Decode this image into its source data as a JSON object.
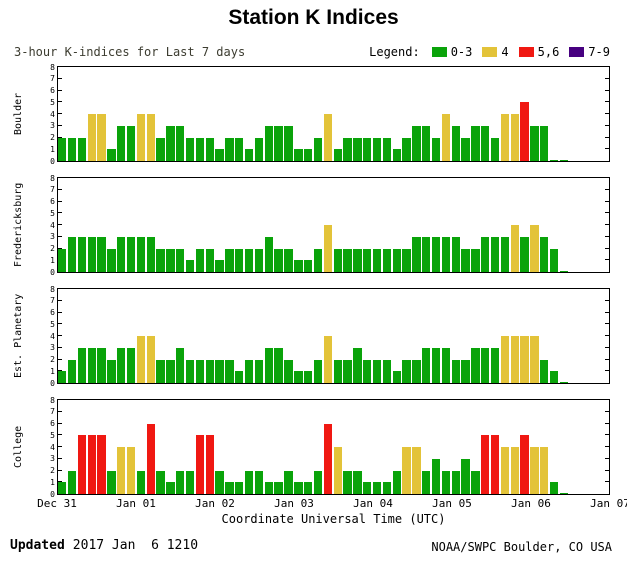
{
  "title": "Station K Indices",
  "header": {
    "subtitle": "3-hour K-indices for Last 7 days",
    "legend_label": "Legend:"
  },
  "footer": {
    "updated_label": "Updated",
    "updated_value": "2017 Jan  6 1210",
    "credit": "NOAA/SWPC Boulder, CO USA"
  },
  "chart_data": {
    "type": "bar",
    "title": "Station K Indices",
    "subtitle": "3-hour K-indices for Last 7 days",
    "xlabel": "Coordinate Universal Time (UTC)",
    "x_tick_labels": [
      "Dec 31",
      "Jan 01",
      "Jan 02",
      "Jan 03",
      "Jan 04",
      "Jan 05",
      "Jan 06",
      "Jan 07"
    ],
    "days": 7,
    "bars_per_day": 8,
    "ylim": [
      0,
      8
    ],
    "y_ticks": [
      0,
      1,
      2,
      3,
      4,
      5,
      6,
      7,
      8
    ],
    "grid": false,
    "legend_position": "top-right",
    "legend": [
      {
        "label": "0-3",
        "color": "#0aa30a"
      },
      {
        "label": "4",
        "color": "#e3c339"
      },
      {
        "label": "5,6",
        "color": "#f01812"
      },
      {
        "label": "7-9",
        "color": "#470080"
      }
    ],
    "panels": [
      {
        "station": "Boulder",
        "values": [
          2,
          2,
          2,
          4,
          4,
          1,
          3,
          3,
          4,
          4,
          2,
          3,
          3,
          2,
          2,
          2,
          1,
          2,
          2,
          1,
          2,
          3,
          3,
          3,
          1,
          1,
          2,
          4,
          1,
          2,
          2,
          2,
          2,
          2,
          1,
          2,
          3,
          3,
          2,
          4,
          3,
          2,
          3,
          3,
          2,
          4,
          4,
          5,
          3,
          3,
          0,
          0
        ]
      },
      {
        "station": "Fredericksburg",
        "values": [
          2,
          3,
          3,
          3,
          3,
          2,
          3,
          3,
          3,
          3,
          2,
          2,
          2,
          1,
          2,
          2,
          1,
          2,
          2,
          2,
          2,
          3,
          2,
          2,
          1,
          1,
          2,
          4,
          2,
          2,
          2,
          2,
          2,
          2,
          2,
          2,
          3,
          3,
          3,
          3,
          3,
          2,
          2,
          3,
          3,
          3,
          4,
          3,
          4,
          3,
          2,
          0
        ]
      },
      {
        "station": "Est. Planetary",
        "values": [
          1,
          2,
          3,
          3,
          3,
          2,
          3,
          3,
          4,
          4,
          2,
          2,
          3,
          2,
          2,
          2,
          2,
          2,
          1,
          2,
          2,
          3,
          3,
          2,
          1,
          1,
          2,
          4,
          2,
          2,
          3,
          2,
          2,
          2,
          1,
          2,
          2,
          3,
          3,
          3,
          2,
          2,
          3,
          3,
          3,
          4,
          4,
          4,
          4,
          2,
          1,
          0
        ]
      },
      {
        "station": "College",
        "values": [
          1,
          2,
          5,
          5,
          5,
          2,
          4,
          4,
          2,
          6,
          2,
          1,
          2,
          2,
          5,
          5,
          2,
          1,
          1,
          2,
          2,
          1,
          1,
          2,
          1,
          1,
          2,
          6,
          4,
          2,
          2,
          1,
          1,
          1,
          2,
          4,
          4,
          2,
          3,
          2,
          2,
          3,
          2,
          5,
          5,
          4,
          4,
          5,
          4,
          4,
          1,
          0
        ]
      }
    ]
  }
}
